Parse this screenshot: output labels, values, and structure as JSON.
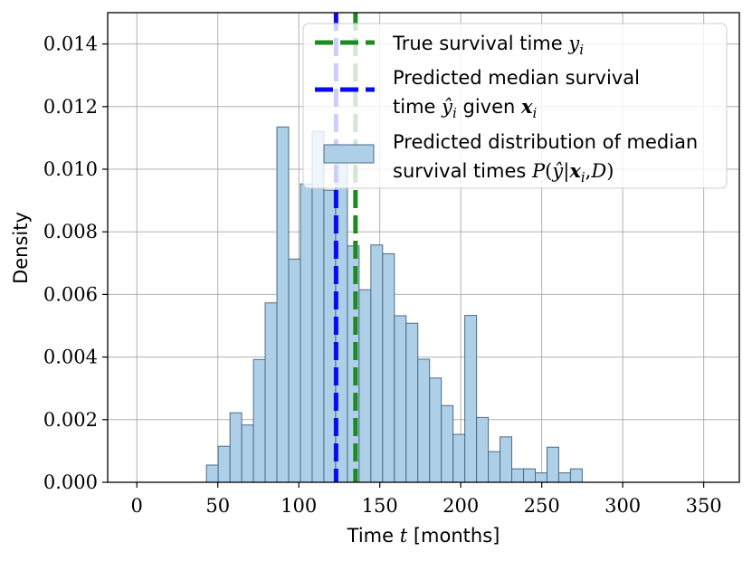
{
  "chart_data": {
    "type": "bar",
    "subtype": "histogram",
    "xlabel": {
      "prefix": "Time ",
      "var": "t",
      "suffix": " [months]"
    },
    "ylabel": "Density",
    "xlim": [
      -18,
      372
    ],
    "ylim": [
      0,
      0.015
    ],
    "xticks": [
      0,
      50,
      100,
      150,
      200,
      250,
      300,
      350
    ],
    "xtick_labels": [
      "0",
      "50",
      "100",
      "150",
      "200",
      "250",
      "300",
      "350"
    ],
    "yticks": [
      0,
      0.002,
      0.004,
      0.006,
      0.008,
      0.01,
      0.012,
      0.014
    ],
    "ytick_labels": [
      "0.000",
      "0.002",
      "0.004",
      "0.006",
      "0.008",
      "0.010",
      "0.012",
      "0.014"
    ],
    "grid": true,
    "histogram": {
      "bin_start": 43,
      "bin_width": 7.25,
      "densities": [
        0.00055,
        0.00115,
        0.00222,
        0.00183,
        0.00392,
        0.00573,
        0.01135,
        0.00713,
        0.00953,
        0.01121,
        0.00933,
        0.01052,
        0.00755,
        0.00615,
        0.00758,
        0.0073,
        0.00532,
        0.00508,
        0.00393,
        0.00333,
        0.00245,
        0.00153,
        0.00533,
        0.00207,
        0.00098,
        0.00145,
        0.00043,
        0.00043,
        0.0003,
        0.00112,
        0.0003,
        0.00043
      ],
      "fill": "#aecfe8",
      "edge": "#4e6b82"
    },
    "lines": [
      {
        "name": "True survival time",
        "x": 135,
        "color": "#1f8a1f",
        "style": "dashed"
      },
      {
        "name": "Predicted median survival time",
        "x": 123,
        "color": "#0a0af0",
        "style": "dashed"
      }
    ],
    "legend": {
      "placement": "top-right",
      "entries": [
        {
          "kind": "line",
          "color": "#1f8a1f",
          "line1": [
            {
              "t": "True survival time "
            },
            {
              "t": "y",
              "s": "math"
            },
            {
              "t": "i",
              "s": "math",
              "sub": true
            }
          ]
        },
        {
          "kind": "line",
          "color": "#0a0af0",
          "line1": [
            {
              "t": "Predicted median survival"
            }
          ],
          "line2": [
            {
              "t": "time "
            },
            {
              "t": "ŷ",
              "s": "math"
            },
            {
              "t": "i",
              "s": "math",
              "sub": true
            },
            {
              "t": " given "
            },
            {
              "t": "x",
              "s": "mathbold"
            },
            {
              "t": "i",
              "s": "math",
              "sub": true
            }
          ]
        },
        {
          "kind": "patch",
          "line1": [
            {
              "t": "Predicted distribution of median"
            }
          ],
          "line2": [
            {
              "t": "survival times "
            },
            {
              "t": "P",
              "s": "math"
            },
            {
              "t": "(",
              "s": "mathup"
            },
            {
              "t": "ŷ",
              "s": "math"
            },
            {
              "t": "|",
              "s": "mathup"
            },
            {
              "t": "x",
              "s": "mathbold"
            },
            {
              "t": "i",
              "s": "math",
              "sub": true
            },
            {
              "t": ",",
              "s": "mathup"
            },
            {
              "t": "D",
              "s": "math"
            },
            {
              "t": ")",
              "s": "mathup"
            }
          ]
        }
      ]
    }
  }
}
